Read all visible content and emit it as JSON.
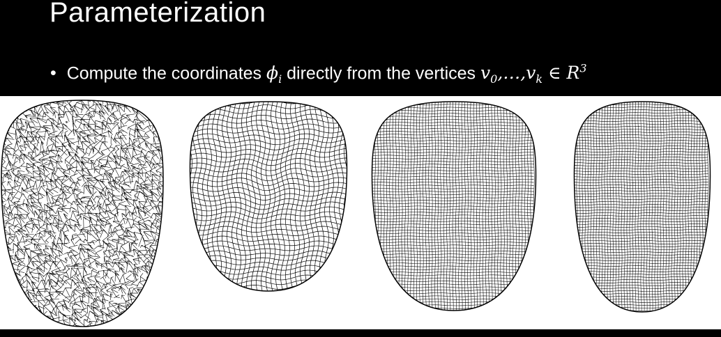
{
  "slide": {
    "title": "Parameterization",
    "bullet_symbol": "•",
    "bullet_text_pre": "Compute the coordinates",
    "phi": "ϕ",
    "phi_sub": "i",
    "bullet_text_mid": "directly from the vertices",
    "v0_base": "v",
    "v0_sub": "0",
    "ellipsis": ",…,",
    "vk_base": "v",
    "vk_sub": "k",
    "in_symbol": "∈",
    "R_base": "R",
    "R_sup": "3"
  },
  "figures": [
    {
      "name": "irregular-triangle-mesh"
    },
    {
      "name": "distorted-quad-mesh"
    },
    {
      "name": "regular-quad-mesh-a"
    },
    {
      "name": "regular-quad-mesh-b"
    }
  ]
}
